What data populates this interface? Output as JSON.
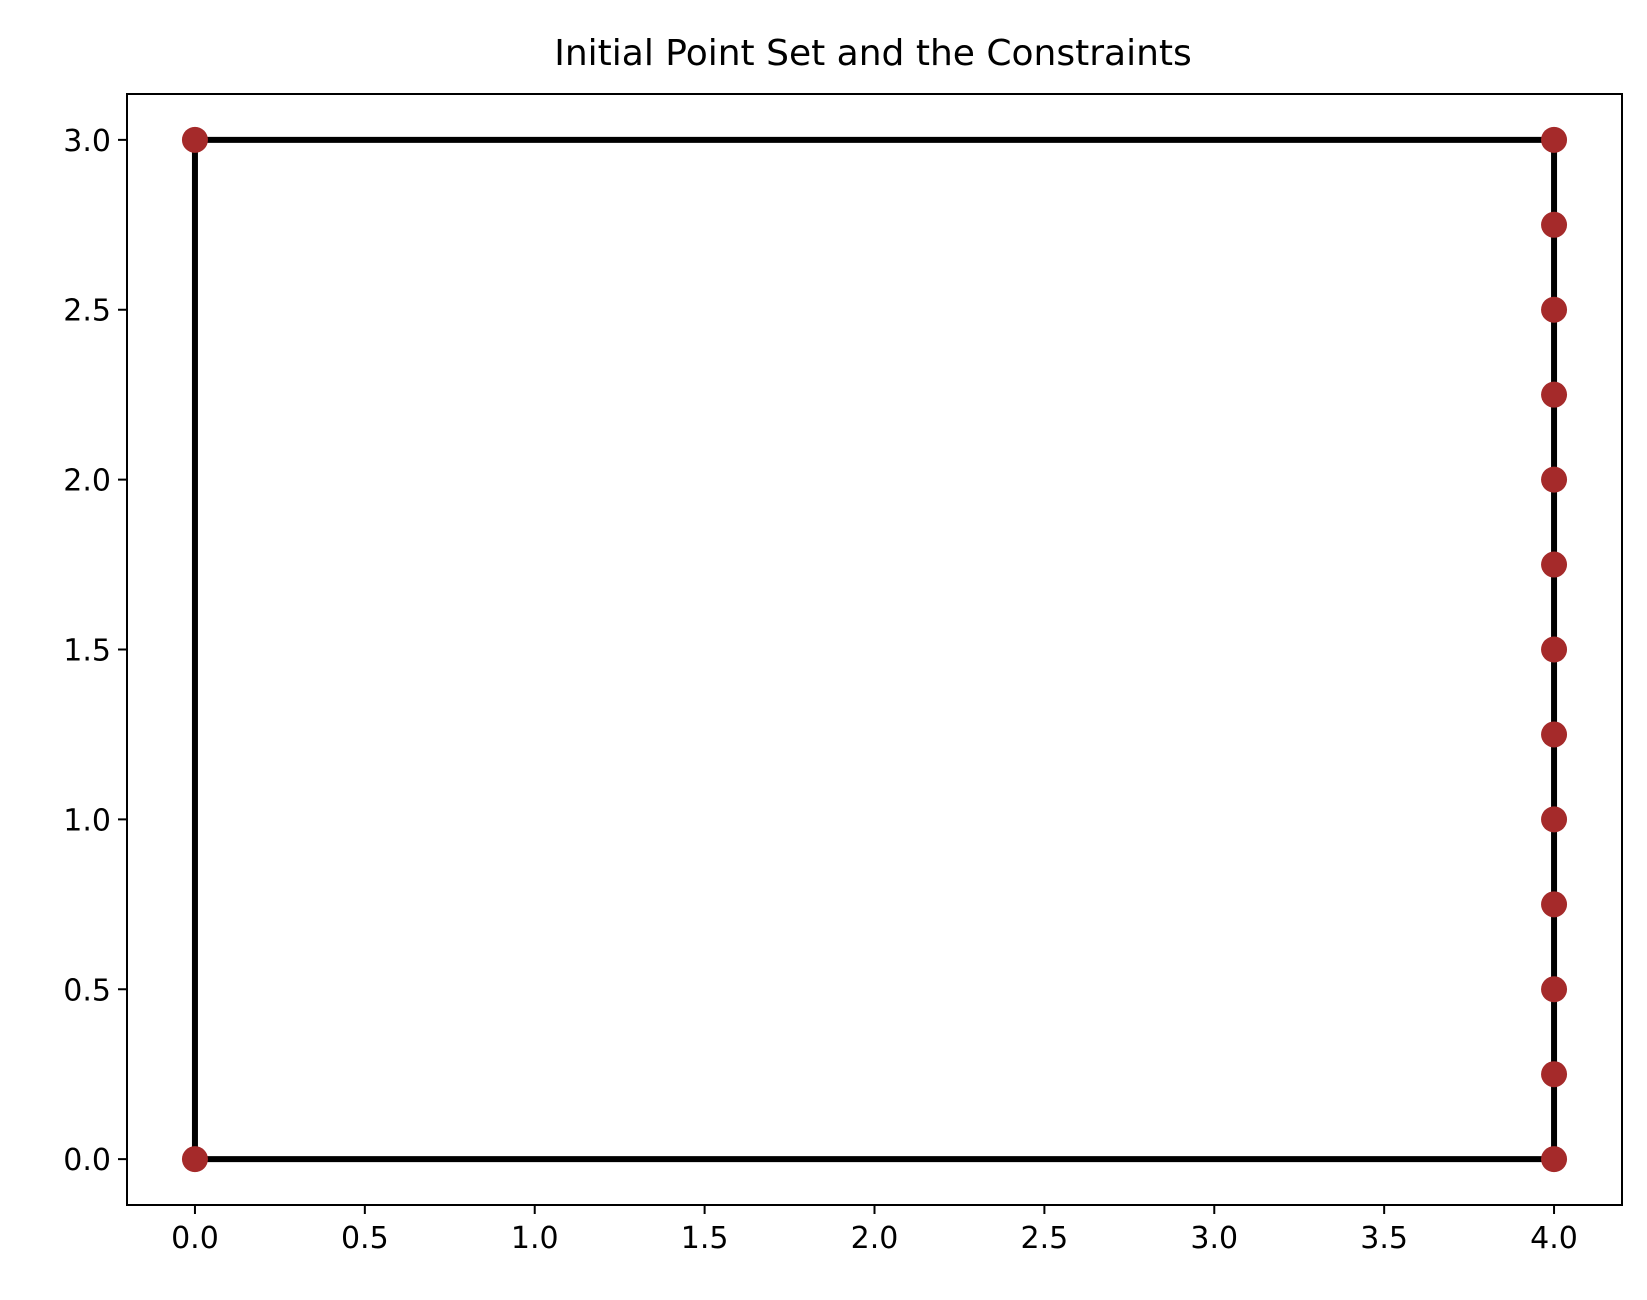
{
  "chart_data": {
    "type": "line",
    "title": "Initial Point Set and the Constraints",
    "xlabel": "",
    "ylabel": "",
    "xlim": [
      -0.2,
      4.2
    ],
    "ylim": [
      -0.135,
      3.135
    ],
    "xticks": [
      "0.0",
      "0.5",
      "1.0",
      "1.5",
      "2.0",
      "2.5",
      "3.0",
      "3.5",
      "4.0"
    ],
    "yticks": [
      "0.0",
      "0.5",
      "1.0",
      "1.5",
      "2.0",
      "2.5",
      "3.0"
    ],
    "grid": false,
    "constraints": [
      [
        [
          0,
          0
        ],
        [
          4,
          0
        ]
      ],
      [
        [
          4,
          0
        ],
        [
          4,
          3
        ]
      ],
      [
        [
          4,
          3
        ],
        [
          0,
          3
        ]
      ],
      [
        [
          0,
          3
        ],
        [
          0,
          0
        ]
      ]
    ],
    "points": [
      [
        0,
        0
      ],
      [
        0,
        3
      ],
      [
        4,
        3
      ],
      [
        4,
        0
      ],
      [
        4,
        0.25
      ],
      [
        4,
        0.5
      ],
      [
        4,
        0.75
      ],
      [
        4,
        1.0
      ],
      [
        4,
        1.25
      ],
      [
        4,
        1.5
      ],
      [
        4,
        1.75
      ],
      [
        4,
        2.0
      ],
      [
        4,
        2.25
      ],
      [
        4,
        2.5
      ],
      [
        4,
        2.75
      ]
    ],
    "colors": {
      "constraint": "#000000",
      "point": "#a52a2a"
    }
  }
}
